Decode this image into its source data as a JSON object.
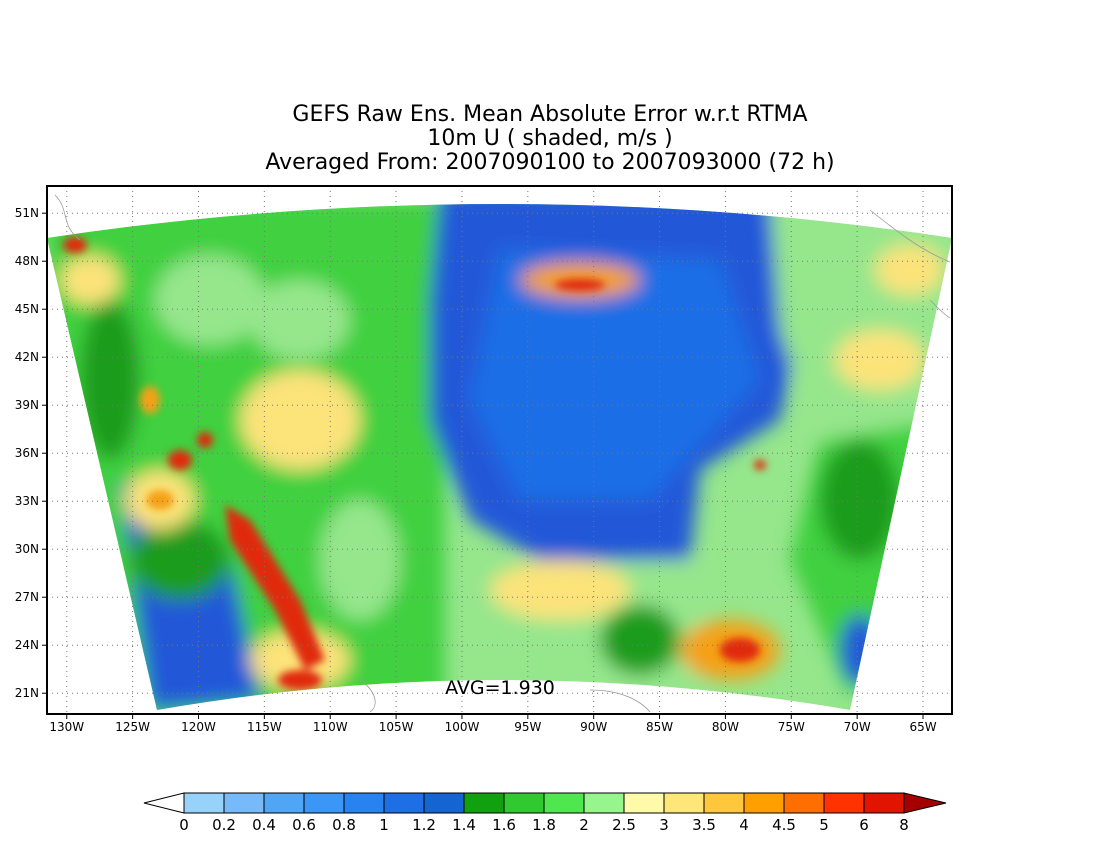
{
  "title": {
    "line1": "GEFS Raw Ens. Mean Absolute Error w.r.t RTMA",
    "line2": "10m U ( shaded, m/s )",
    "line3": "Averaged From: 2007090100 to 2007093000 (72 h)"
  },
  "map": {
    "projection": "lat-lon with curved data domain",
    "lon_labels": [
      "130W",
      "125W",
      "120W",
      "115W",
      "110W",
      "105W",
      "100W",
      "95W",
      "90W",
      "85W",
      "80W",
      "75W",
      "70W",
      "65W"
    ],
    "lon_values": [
      -130,
      -125,
      -120,
      -115,
      -110,
      -105,
      -100,
      -95,
      -90,
      -85,
      -80,
      -75,
      -70,
      -65
    ],
    "lat_labels": [
      "21N",
      "24N",
      "27N",
      "30N",
      "33N",
      "36N",
      "39N",
      "42N",
      "45N",
      "48N",
      "51N"
    ],
    "lat_values": [
      21,
      24,
      27,
      30,
      33,
      36,
      39,
      42,
      45,
      48,
      51
    ],
    "grid": "dotted",
    "avg_label": "AVG=1.930",
    "field_colors": {
      "low_blue": "#2458d8",
      "mid_green": "#1a9c1a",
      "green": "#40d040",
      "light_green": "#96e68c",
      "yellow": "#fce37a",
      "orange": "#f5a016",
      "red": "#e02a10"
    }
  },
  "colorbar": {
    "labels": [
      "0",
      "0.2",
      "0.4",
      "0.6",
      "0.8",
      "1",
      "1.2",
      "1.4",
      "1.6",
      "1.8",
      "2",
      "2.5",
      "3",
      "3.5",
      "4",
      "4.5",
      "5",
      "6",
      "8"
    ],
    "colors": [
      "#96d2fa",
      "#78b9fa",
      "#50a5f5",
      "#3c96f5",
      "#2882f0",
      "#1e6ee6",
      "#1464d2",
      "#10a010",
      "#32c832",
      "#50e650",
      "#96f58c",
      "#fffaaa",
      "#ffe678",
      "#ffc83c",
      "#ffa000",
      "#ff6e00",
      "#ff3200",
      "#e11400",
      "#a50000"
    ],
    "under_color": "#ffffff",
    "over_color": "#a50000"
  }
}
